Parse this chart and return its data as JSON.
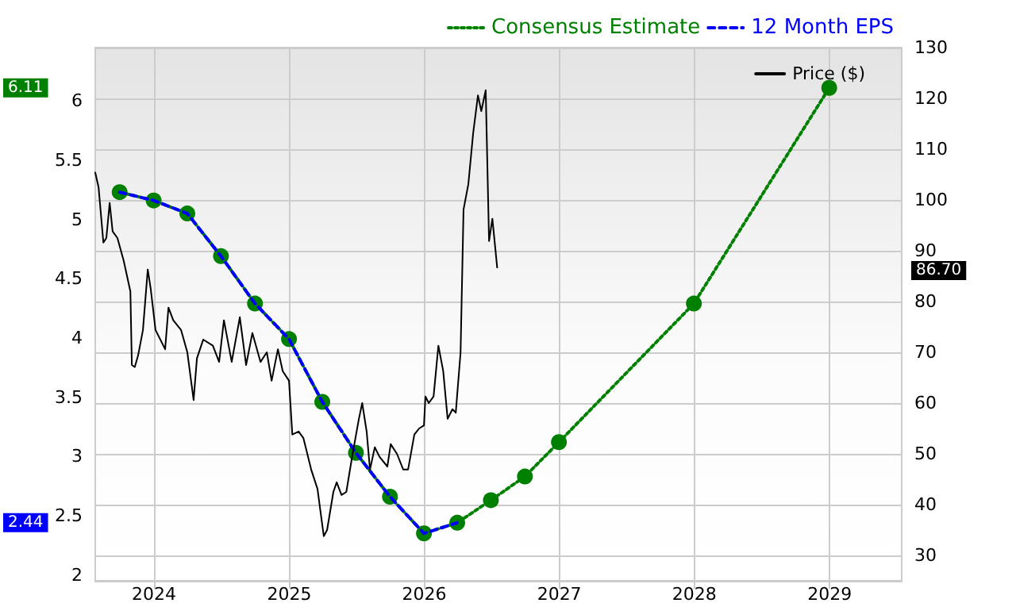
{
  "chart_data": {
    "type": "line",
    "xlim": [
      "2023-07-26",
      "2029-07-15"
    ],
    "xticks": [
      {
        "value": "2024-01-01",
        "label": "2024"
      },
      {
        "value": "2025-01-01",
        "label": "2025"
      },
      {
        "value": "2026-01-01",
        "label": "2026"
      },
      {
        "value": "2027-01-01",
        "label": "2027"
      },
      {
        "value": "2028-01-01",
        "label": "2028"
      },
      {
        "value": "2029-01-01",
        "label": "2029"
      }
    ],
    "ylim": [
      1.95,
      6.45
    ],
    "yticks": [
      2,
      2.5,
      3,
      3.5,
      4,
      4.5,
      5,
      5.5,
      6
    ],
    "y2lim": [
      25,
      130
    ],
    "y2ticks": [
      30,
      40,
      50,
      60,
      70,
      80,
      90,
      100,
      110,
      120,
      130
    ],
    "grid": true,
    "legend": "top right",
    "series": [
      {
        "name": "Consensus Estimate",
        "color": "#008000",
        "line_style": "dotted",
        "marker": "circle",
        "x": [
          "2023-09-30",
          "2023-12-31",
          "2024-03-31",
          "2024-06-30",
          "2024-09-30",
          "2024-12-31",
          "2025-03-31",
          "2025-06-30",
          "2025-09-30",
          "2025-12-31",
          "2026-03-31",
          "2026-06-30",
          "2026-09-30",
          "2026-12-31",
          "2027-12-31",
          "2028-12-31"
        ],
        "values": [
          5.23,
          5.16,
          5.05,
          4.69,
          4.29,
          3.99,
          3.46,
          3.03,
          2.66,
          2.35,
          2.44,
          2.63,
          2.83,
          3.12,
          4.29,
          6.11
        ]
      },
      {
        "name": "12 Month EPS",
        "color": "#0000ff",
        "line_style": "dashed",
        "marker": "none",
        "x": [
          "2023-09-30",
          "2023-12-31",
          "2024-03-31",
          "2024-06-30",
          "2024-09-30",
          "2024-12-31",
          "2025-03-31",
          "2025-06-30",
          "2025-09-30",
          "2025-12-31",
          "2026-03-31"
        ],
        "values": [
          5.23,
          5.16,
          5.05,
          4.69,
          4.29,
          3.99,
          3.46,
          3.03,
          2.66,
          2.35,
          2.44
        ]
      },
      {
        "name": "Price ($)",
        "color": "#000000",
        "line_style": "solid",
        "marker": "none",
        "axis": "y2",
        "x": [
          "2023-07-26",
          "2023-08-04",
          "2023-08-17",
          "2023-08-25",
          "2023-09-03",
          "2023-09-11",
          "2023-09-24",
          "2023-10-11",
          "2023-10-29",
          "2023-11-02",
          "2023-11-10",
          "2023-11-19",
          "2023-12-02",
          "2023-12-15",
          "2023-12-23",
          "2024-01-05",
          "2024-01-31",
          "2024-02-09",
          "2024-02-22",
          "2024-03-14",
          "2024-03-31",
          "2024-04-17",
          "2024-04-26",
          "2024-05-13",
          "2024-06-08",
          "2024-06-25",
          "2024-07-08",
          "2024-07-29",
          "2024-08-20",
          "2024-09-06",
          "2024-09-23",
          "2024-10-15",
          "2024-11-01",
          "2024-11-14",
          "2024-12-01",
          "2024-12-14",
          "2024-12-31",
          "2025-01-09",
          "2025-01-26",
          "2025-02-08",
          "2025-03-01",
          "2025-03-18",
          "2025-04-04",
          "2025-04-13",
          "2025-04-30",
          "2025-05-09",
          "2025-05-22",
          "2025-06-04",
          "2025-06-21",
          "2025-07-08",
          "2025-07-17",
          "2025-07-29",
          "2025-08-07",
          "2025-08-20",
          "2025-09-02",
          "2025-09-23",
          "2025-10-02",
          "2025-10-19",
          "2025-11-05",
          "2025-11-18",
          "2025-12-05",
          "2025-12-18",
          "2025-12-31",
          "2026-01-04",
          "2026-01-13",
          "2026-01-26",
          "2026-02-08",
          "2026-02-21",
          "2026-03-05",
          "2026-03-18",
          "2026-03-27",
          "2026-04-09",
          "2026-04-17",
          "2026-04-30",
          "2026-05-13",
          "2026-05-26",
          "2026-06-04",
          "2026-06-16",
          "2026-06-25",
          "2026-07-04",
          "2026-07-17"
        ],
        "values": [
          105.4,
          102.5,
          91.6,
          92.5,
          99.4,
          93.8,
          92.5,
          88,
          82,
          67.5,
          67.1,
          69.4,
          74.4,
          86.3,
          82.5,
          74.4,
          70.6,
          78.8,
          76.3,
          74.4,
          70,
          60.6,
          68.8,
          72.5,
          71.3,
          68.1,
          76.3,
          68.1,
          76.9,
          67.5,
          73.8,
          68.1,
          70,
          64.4,
          70.6,
          66.3,
          64.4,
          53.8,
          54.4,
          53.1,
          46.9,
          43.1,
          33.8,
          35,
          42.5,
          44.4,
          41.9,
          42.5,
          50,
          56.9,
          60,
          54.4,
          46.9,
          51.3,
          49.4,
          47.5,
          51.9,
          50,
          46.9,
          46.9,
          53.8,
          55,
          55.6,
          61.3,
          60,
          61.3,
          71.3,
          66.3,
          56.9,
          58.8,
          58.1,
          70,
          98.1,
          103.1,
          113.1,
          120.6,
          117.5,
          121.6,
          91.9,
          96.3,
          86.7
        ]
      }
    ],
    "annotations": [
      "6.11",
      "2.44",
      "86.70"
    ]
  }
}
